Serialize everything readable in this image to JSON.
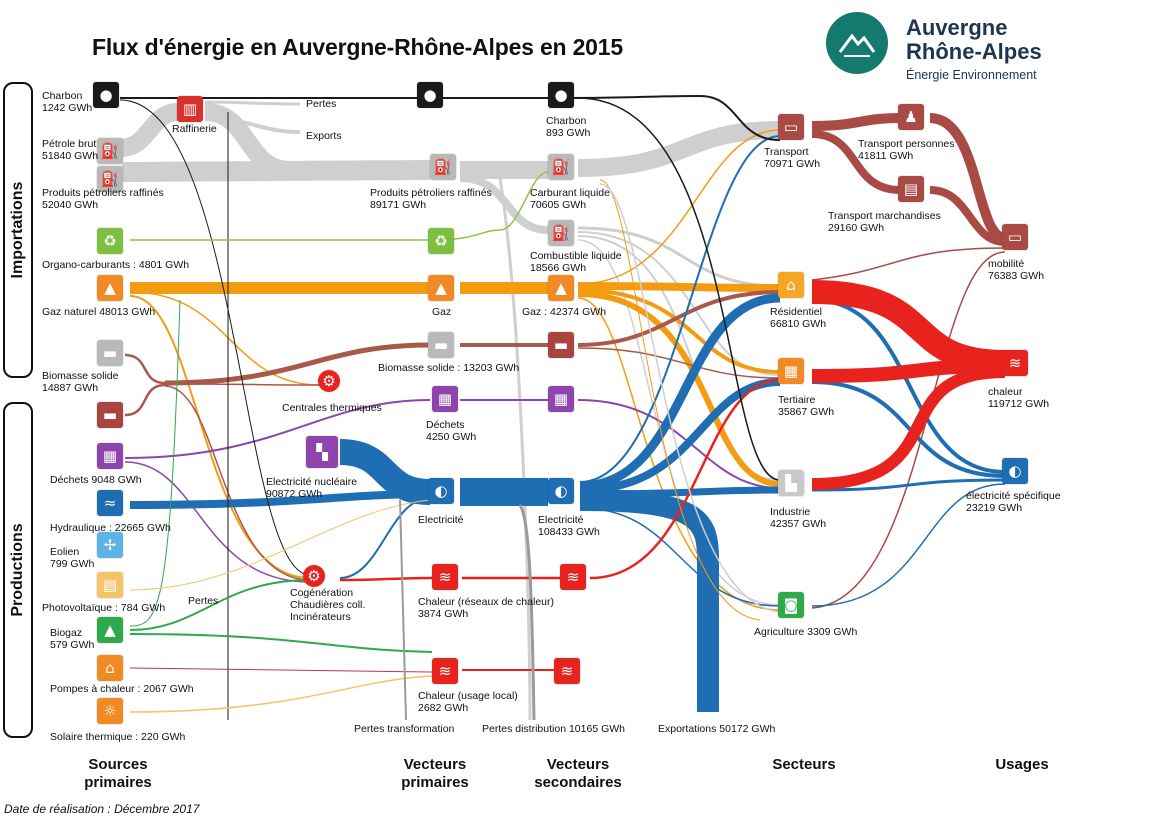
{
  "title": "Flux d'énergie en Auvergne-Rhône-Alpes en 2015",
  "logo": {
    "line1": "Auvergne",
    "line2": "Rhône-Alpes",
    "line3": "Énergie Environnement"
  },
  "groups": {
    "imports": "Importations",
    "productions": "Productions"
  },
  "columns": {
    "sources": [
      "Sources",
      "primaires"
    ],
    "vp": [
      "Vecteurs",
      "primaires"
    ],
    "vs": [
      "Vecteurs",
      "secondaires"
    ],
    "secteurs": [
      "Secteurs"
    ],
    "usages": [
      "Usages"
    ]
  },
  "footer": "Date de réalisation : Décembre 2017",
  "labels": {
    "charbon_src": [
      "Charbon",
      "1242 GWh"
    ],
    "petrole_brut": [
      "Pétrole brut",
      "51840 GWh"
    ],
    "ppr_src": [
      "Produits pétroliers raffinés",
      "52040 GWh"
    ],
    "organo": "Organo-carburants : 4801 GWh",
    "gaz_src": "Gaz naturel 48013 GWh",
    "biomasse_src": [
      "Biomasse solide",
      "14887 GWh"
    ],
    "dechets_src": "Déchets 9048 GWh",
    "hydraulique": "Hydraulique : 22665 GWh",
    "eolien": [
      "Eolien",
      "799 GWh"
    ],
    "photovoltaique": "Photovoltaïque : 784 GWh",
    "biogaz": [
      "Biogaz",
      "579 GWh"
    ],
    "pac": "Pompes à chaleur : 2067 GWh",
    "solaire_th": "Solaire thermique : 220 GWh",
    "raffinerie": "Raffinerie",
    "pertes_top": "Pertes",
    "exports_top": "Exports",
    "centrales": "Centrales thermiques",
    "cogeneration": [
      "Cogénération",
      "Chaudières coll.",
      "Incinérateurs"
    ],
    "pertes_mid": "Pertes",
    "pertes_transfo": "Pertes transformation",
    "pertes_distrib": "Pertes distribution 10165 GWh",
    "exportations": "Exportations 50172 GWh",
    "ppr_vp": [
      "Produits pétroliers raffinés",
      "89171 GWh"
    ],
    "gaz_vp": "Gaz",
    "biomasse_vp": "Biomasse solide : 13203 GWh",
    "dechets_vp": [
      "Déchets",
      "4250 GWh"
    ],
    "elec_nuc": [
      "Electricité nucléaire",
      "90872 GWh"
    ],
    "electricite_vp": "Electricité",
    "chaleur_res": [
      "Chaleur (réseaux de chaleur)",
      "3874 GWh"
    ],
    "chaleur_loc": [
      "Chaleur (usage local)",
      "2682 GWh"
    ],
    "charbon_vs": [
      "Charbon",
      "893 GWh"
    ],
    "carburant": [
      "Carburant liquide",
      "70605 GWh"
    ],
    "combustible": [
      "Combustible liquide",
      "18566 GWh"
    ],
    "gaz_vs": "Gaz : 42374 GWh",
    "electricite_vs": [
      "Electricité",
      "108433 GWh"
    ],
    "transport": [
      "Transport",
      "70971 GWh"
    ],
    "residentiel": [
      "Résidentiel",
      "66810 GWh"
    ],
    "tertiaire": [
      "Tertiaire",
      "35867 GWh"
    ],
    "industrie": [
      "Industrie",
      "42357 GWh"
    ],
    "agriculture": "Agriculture 3309 GWh",
    "transp_pers": [
      "Transport personnes",
      "41811 GWh"
    ],
    "transp_march": [
      "Transport marchandises",
      "29160 GWh"
    ],
    "mobilite": [
      "mobilité",
      "76383 GWh"
    ],
    "chaleur_usage": [
      "chaleur",
      "119712 GWh"
    ],
    "elec_spec": [
      "électricité spécifique",
      "23219 GWh"
    ]
  },
  "colors": {
    "coal": "#1a1a1a",
    "oil": "#c8c8c8",
    "gas": "#f39c12",
    "biomass": "#a85a4a",
    "waste": "#8e44ad",
    "electricity": "#1f6db3",
    "heat": "#e8231e",
    "transport": "#a94a44",
    "organo": "#8dc63f",
    "biogas": "#2eaa4a",
    "solar": "#f5c46a",
    "brand": "#147a6e"
  },
  "icons": {
    "charbon_src": {
      "icon": "coal-icon",
      "color": "#1a1a1a"
    },
    "raffinerie": {
      "icon": "refinery-icon",
      "color": "#d9302b"
    },
    "petrole_brut": {
      "icon": "oil-pump-icon",
      "color": "#b9b9b9"
    },
    "ppr_src": {
      "icon": "oil-pump-icon",
      "color": "#b9b9b9"
    },
    "organo": {
      "icon": "organo-fuel-icon",
      "color": "#7fbf3f"
    },
    "gaz_src": {
      "icon": "gas-flame-icon",
      "color": "#f08a24"
    },
    "biomasse_src": {
      "icon": "wood-log-icon",
      "color": "#b9b9b9"
    },
    "biomasse_src2": {
      "icon": "wood-log-icon",
      "color": "#a9443f"
    },
    "dechets_src": {
      "icon": "waste-bin-icon",
      "color": "#8e44ad"
    },
    "hydraulique": {
      "icon": "water-wave-icon",
      "color": "#1f6db3"
    },
    "eolien": {
      "icon": "wind-turbine-icon",
      "color": "#5ab4e5"
    },
    "photovoltaique": {
      "icon": "solar-panel-icon",
      "color": "#f5c46a"
    },
    "biogaz": {
      "icon": "biogas-flame-icon",
      "color": "#2eaa4a"
    },
    "pac": {
      "icon": "heat-pump-icon",
      "color": "#f08a24"
    },
    "solaire_th": {
      "icon": "sun-icon",
      "color": "#f08a24"
    },
    "centrales": {
      "icon": "power-plant-gear-icon",
      "color": "#e8231e"
    },
    "cogeneration": {
      "icon": "cogeneration-gear-icon",
      "color": "#e8231e"
    },
    "charbon_vp": {
      "icon": "coal-icon",
      "color": "#1a1a1a"
    },
    "ppr_vp": {
      "icon": "oil-pump-icon",
      "color": "#b9b9b9"
    },
    "organo_vp": {
      "icon": "organo-fuel-icon",
      "color": "#7fbf3f"
    },
    "gaz_vp": {
      "icon": "gas-flame-icon",
      "color": "#f08a24"
    },
    "biomasse_vp": {
      "icon": "wood-log-icon",
      "color": "#b9b9b9"
    },
    "dechets_vp": {
      "icon": "waste-bin-icon",
      "color": "#8e44ad"
    },
    "elec_nuc": {
      "icon": "nuclear-plant-icon",
      "color": "#8e44ad"
    },
    "electricite_vp": {
      "icon": "lightbulb-icon",
      "color": "#1f6db3"
    },
    "chaleur_res": {
      "icon": "district-heat-icon",
      "color": "#e8231e"
    },
    "chaleur_loc": {
      "icon": "local-heat-icon",
      "color": "#e8231e"
    },
    "charbon_vs": {
      "icon": "coal-icon",
      "color": "#1a1a1a"
    },
    "carburant": {
      "icon": "fuel-pump-icon",
      "color": "#b9b9b9"
    },
    "combustible": {
      "icon": "oil-pump-icon",
      "color": "#b9b9b9"
    },
    "gaz_vs": {
      "icon": "gas-flame-icon",
      "color": "#f08a24"
    },
    "biomasse_vs": {
      "icon": "wood-log-icon",
      "color": "#a9443f"
    },
    "dechets_vs": {
      "icon": "waste-bin-icon",
      "color": "#8e44ad"
    },
    "electricite_vs": {
      "icon": "lightbulb-icon",
      "color": "#1f6db3"
    },
    "chaleur_res_vs": {
      "icon": "district-heat-icon",
      "color": "#e8231e"
    },
    "chaleur_loc_vs": {
      "icon": "local-heat-icon",
      "color": "#e8231e"
    },
    "transport": {
      "icon": "truck-icon",
      "color": "#a94a44"
    },
    "residentiel": {
      "icon": "house-icon",
      "color": "#f5a623"
    },
    "tertiaire": {
      "icon": "office-building-icon",
      "color": "#f08a24"
    },
    "industrie": {
      "icon": "factory-icon",
      "color": "#c8c8c8"
    },
    "agriculture": {
      "icon": "tractor-icon",
      "color": "#2eaa4a"
    },
    "transp_pers": {
      "icon": "people-transport-icon",
      "color": "#a94a44"
    },
    "transp_march": {
      "icon": "freight-train-icon",
      "color": "#a94a44"
    },
    "mobilite": {
      "icon": "truck-icon",
      "color": "#a94a44"
    },
    "chaleur_usage": {
      "icon": "heat-waves-icon",
      "color": "#e8231e"
    },
    "elec_spec": {
      "icon": "lightbulb-icon",
      "color": "#1f6db3"
    }
  }
}
